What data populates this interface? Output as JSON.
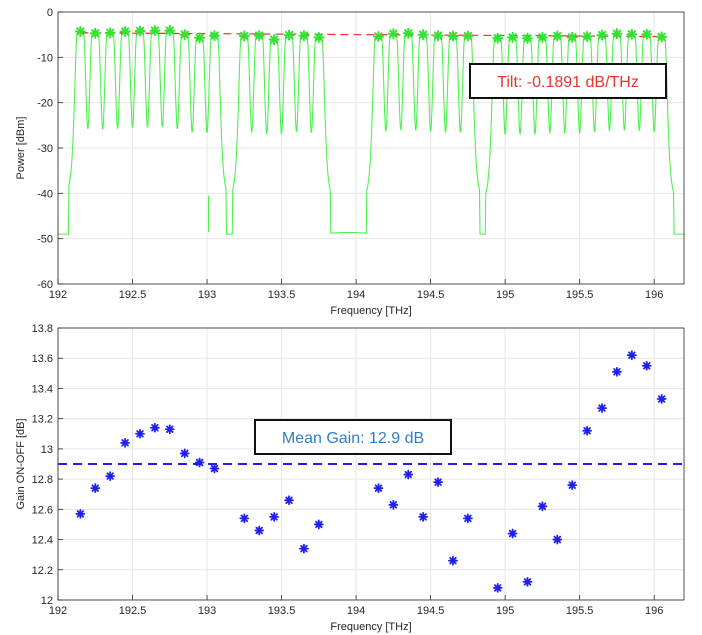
{
  "chart_data": [
    {
      "type": "line",
      "xlabel": "Frequency [THz]",
      "ylabel": "Power [dBm]",
      "xlim": [
        192,
        196.2
      ],
      "ylim": [
        -60,
        0
      ],
      "x_ticks": [
        "192",
        "192.5",
        "193",
        "193.5",
        "194",
        "194.5",
        "195",
        "195.5",
        "196"
      ],
      "y_ticks": [
        "0",
        "-10",
        "-20",
        "-30",
        "-40",
        "-50",
        "-60"
      ],
      "grid": true,
      "noise_floor_dbm": -49,
      "channel_peaks": {
        "x": [
          192.15,
          192.25,
          192.35,
          192.45,
          192.55,
          192.65,
          192.75,
          192.85,
          192.95,
          193.05,
          193.25,
          193.35,
          193.45,
          193.55,
          193.65,
          193.75,
          194.15,
          194.25,
          194.35,
          194.45,
          194.55,
          194.65,
          194.75,
          194.95,
          195.05,
          195.15,
          195.25,
          195.35,
          195.45,
          195.55,
          195.65,
          195.75,
          195.85,
          195.95,
          196.05
        ],
        "y": [
          -4.3,
          -4.7,
          -4.6,
          -4.3,
          -4.2,
          -4.1,
          -4.1,
          -5.0,
          -5.7,
          -5.2,
          -5.3,
          -5.2,
          -6.1,
          -5.1,
          -5.2,
          -5.6,
          -5.4,
          -4.8,
          -4.7,
          -5.0,
          -5.2,
          -5.3,
          -5.3,
          -5.8,
          -5.6,
          -5.8,
          -5.6,
          -5.3,
          -5.6,
          -5.4,
          -5.1,
          -4.8,
          -4.9,
          -4.9,
          -5.5
        ]
      },
      "tilt_line": {
        "x": [
          192.15,
          196.05
        ],
        "y": [
          -4.6,
          -5.4
        ],
        "color": "#e8352e"
      },
      "annotation": "Tilt: -0.1891 dB/THz",
      "colors": {
        "trace": "#4ef04e",
        "markers": "#33e233",
        "tilt": "#e8352e",
        "annotation_text": "#e8352e"
      }
    },
    {
      "type": "scatter",
      "xlabel": "Frequency [THz]",
      "ylabel": "Gain ON-OFF [dB]",
      "xlim": [
        192,
        196.2
      ],
      "ylim": [
        12,
        13.8
      ],
      "x_ticks": [
        "192",
        "192.5",
        "193",
        "193.5",
        "194",
        "194.5",
        "195",
        "195.5",
        "196"
      ],
      "y_ticks": [
        "13.8",
        "13.6",
        "13.4",
        "13.2",
        "13",
        "12.8",
        "12.6",
        "12.4",
        "12.2",
        "12"
      ],
      "grid": true,
      "x": [
        192.15,
        192.25,
        192.35,
        192.45,
        192.55,
        192.65,
        192.75,
        192.85,
        192.95,
        193.05,
        193.25,
        193.35,
        193.45,
        193.55,
        193.65,
        193.75,
        194.15,
        194.25,
        194.35,
        194.45,
        194.55,
        194.65,
        194.75,
        194.95,
        195.05,
        195.15,
        195.25,
        195.35,
        195.45,
        195.55,
        195.65,
        195.75,
        195.85,
        195.95,
        196.05
      ],
      "y": [
        12.57,
        12.74,
        12.82,
        13.04,
        13.1,
        13.14,
        13.13,
        12.97,
        12.91,
        12.87,
        12.54,
        12.46,
        12.55,
        12.66,
        12.34,
        12.5,
        12.74,
        12.63,
        12.83,
        12.55,
        12.78,
        12.26,
        12.54,
        12.08,
        12.44,
        12.12,
        12.62,
        12.4,
        12.76,
        13.12,
        13.27,
        13.51,
        13.62,
        13.55,
        13.33
      ],
      "mean_gain_db": 12.9,
      "annotation": "Mean Gain: 12.9 dB",
      "colors": {
        "markers": "#1f1ff0",
        "mean_line": "#1f1ff0",
        "annotation_text": "#2f7fc6"
      }
    }
  ]
}
